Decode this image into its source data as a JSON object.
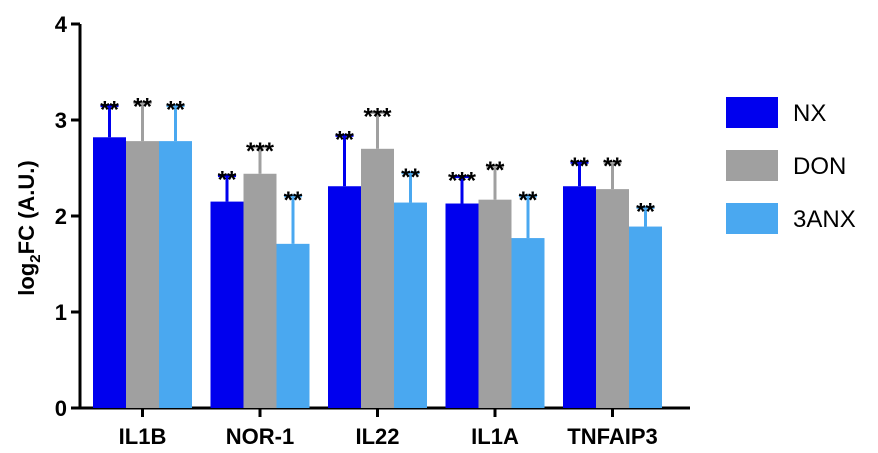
{
  "chart_data": {
    "type": "bar",
    "title": "",
    "xlabel": "",
    "ylabel": {
      "main": "log",
      "sub": "2",
      "rest": "FC (A.U.)"
    },
    "ylim": [
      0,
      4
    ],
    "yticks": [
      "0",
      "1",
      "2",
      "3",
      "4"
    ],
    "grid": false,
    "legend_position": "right",
    "categories": [
      "IL1B",
      "NOR-1",
      "IL22",
      "IL1A",
      "TNFAIP3"
    ],
    "series": [
      {
        "name": "NX",
        "color": "#0000ee",
        "values": [
          2.82,
          2.15,
          2.31,
          2.13,
          2.31
        ],
        "errors": [
          0.33,
          0.27,
          0.53,
          0.28,
          0.25
        ],
        "significance": [
          "**",
          "**",
          "**",
          "***",
          "**"
        ]
      },
      {
        "name": "DON",
        "color": "#a0a0a0",
        "values": [
          2.78,
          2.44,
          2.7,
          2.17,
          2.28
        ],
        "errors": [
          0.4,
          0.28,
          0.38,
          0.35,
          0.28
        ],
        "significance": [
          "**",
          "***",
          "***",
          "**",
          "**"
        ]
      },
      {
        "name": "3ANX",
        "color": "#4aa8f0",
        "values": [
          2.78,
          1.71,
          2.14,
          1.77,
          1.89
        ],
        "errors": [
          0.37,
          0.5,
          0.31,
          0.44,
          0.2
        ],
        "significance": [
          "**",
          "**",
          "**",
          "**",
          "**"
        ]
      }
    ]
  }
}
